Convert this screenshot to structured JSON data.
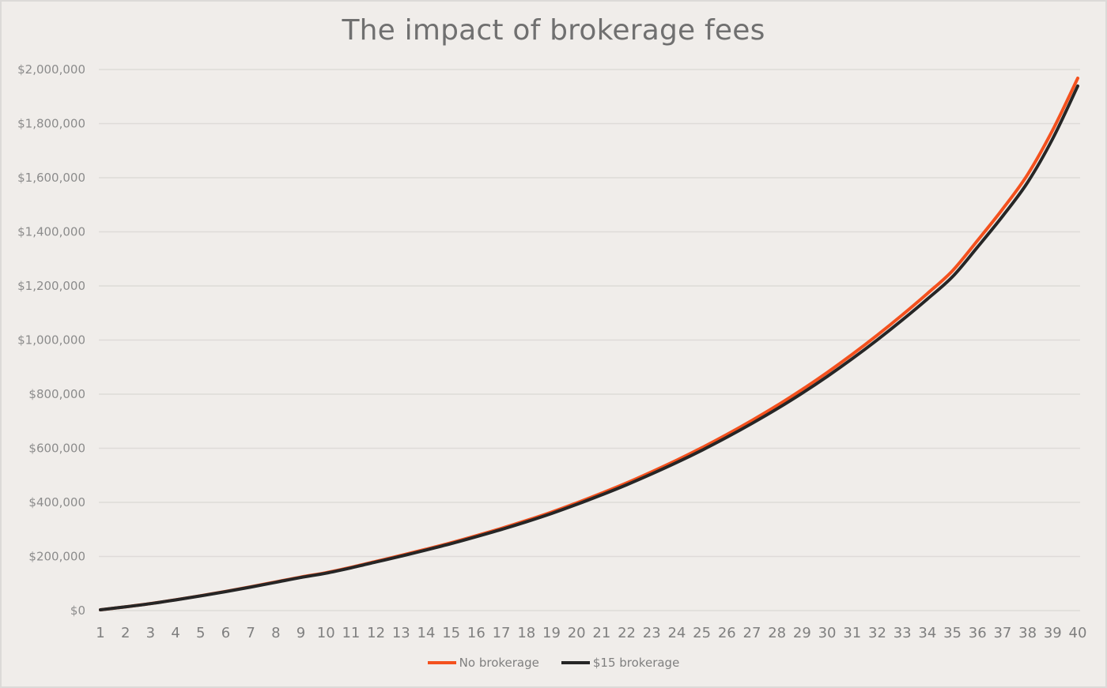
{
  "chart_data": {
    "type": "line",
    "title": "The impact of brokerage fees",
    "xlabel": "",
    "ylabel": "",
    "ylim": [
      0,
      2000000
    ],
    "grid": true,
    "legend_position": "bottom",
    "x": [
      1,
      2,
      3,
      4,
      5,
      6,
      7,
      8,
      9,
      10,
      11,
      12,
      13,
      14,
      15,
      16,
      17,
      18,
      19,
      20,
      21,
      22,
      23,
      24,
      25,
      26,
      27,
      28,
      29,
      30,
      31,
      32,
      33,
      34,
      35,
      36,
      37,
      38,
      39,
      40
    ],
    "y_ticks": [
      "$0",
      "$200,000",
      "$400,000",
      "$600,000",
      "$800,000",
      "$1,000,000",
      "$1,200,000",
      "$1,400,000",
      "$1,600,000",
      "$1,800,000",
      "$2,000,000"
    ],
    "y_tick_values": [
      0,
      200000,
      400000,
      600000,
      800000,
      1000000,
      1200000,
      1400000,
      1600000,
      1800000,
      2000000
    ],
    "series": [
      {
        "name": "No brokerage",
        "color": "#f4511e",
        "values": [
          3000,
          14000,
          26000,
          40000,
          55000,
          71000,
          88000,
          106000,
          124000,
          140000,
          160000,
          182000,
          204000,
          227000,
          251000,
          277000,
          304000,
          333000,
          364000,
          398000,
          434000,
          472000,
          513000,
          556000,
          602000,
          651000,
          703000,
          758000,
          817000,
          880000,
          947000,
          1018000,
          1093000,
          1172000,
          1256000,
          1368000,
          1484000,
          1612000,
          1776000,
          1968000
        ]
      },
      {
        "name": "$15 brokerage",
        "color": "#262626",
        "values": [
          3000,
          13800,
          25700,
          39500,
          54300,
          70100,
          86900,
          104600,
          122400,
          138200,
          157900,
          179600,
          201300,
          224000,
          247600,
          273200,
          299800,
          328300,
          358800,
          392200,
          427600,
          465000,
          505200,
          547500,
          592600,
          640800,
          691800,
          745700,
          803500,
          865200,
          930900,
          1000600,
          1074200,
          1151600,
          1233800,
          1343600,
          1457600,
          1582900,
          1744200,
          1939000
        ]
      }
    ]
  },
  "legend": {
    "items": [
      {
        "label": "No brokerage",
        "color": "#f4511e"
      },
      {
        "label": "$15 brokerage",
        "color": "#262626"
      }
    ]
  }
}
